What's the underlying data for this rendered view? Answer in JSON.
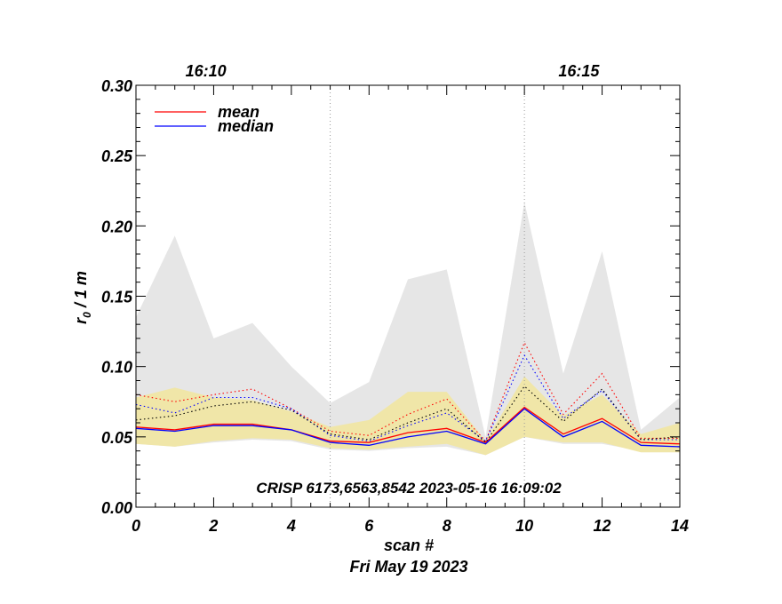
{
  "chart_data": {
    "type": "line",
    "xlabel": "scan #",
    "date_label": "Fri May 19 2023",
    "ylabel_main": "r",
    "ylabel_sub": "0",
    "ylabel_rest": " / 1 m",
    "xlim": [
      0,
      14
    ],
    "ylim": [
      0.0,
      0.3
    ],
    "x_ticks": [
      0,
      2,
      4,
      6,
      8,
      10,
      12,
      14
    ],
    "y_ticks": [
      0.0,
      0.05,
      0.1,
      0.15,
      0.2,
      0.25,
      0.3
    ],
    "y_tick_labels": [
      "0.00",
      "0.05",
      "0.10",
      "0.15",
      "0.20",
      "0.25",
      "0.30"
    ],
    "time_markers": [
      {
        "x": 5,
        "label": ""
      },
      {
        "x": 10,
        "label": ""
      }
    ],
    "top_labels": [
      {
        "x": 1.8,
        "label": "16:10"
      },
      {
        "x": 11.4,
        "label": "16:15"
      }
    ],
    "x": [
      0,
      1,
      2,
      3,
      4,
      5,
      6,
      7,
      8,
      9,
      10,
      11,
      12,
      13,
      14
    ],
    "series": [
      {
        "name": "mean",
        "color": "#ff0000",
        "style": "solid",
        "values": [
          0.057,
          0.055,
          0.059,
          0.059,
          0.055,
          0.047,
          0.046,
          0.053,
          0.056,
          0.046,
          0.071,
          0.052,
          0.063,
          0.046,
          0.045
        ]
      },
      {
        "name": "median",
        "color": "#0000ff",
        "style": "solid",
        "values": [
          0.056,
          0.054,
          0.058,
          0.058,
          0.055,
          0.046,
          0.044,
          0.05,
          0.054,
          0.045,
          0.07,
          0.05,
          0.061,
          0.044,
          0.043
        ]
      },
      {
        "name": "mean-upper",
        "color": "#ff0000",
        "style": "dotted",
        "values": [
          0.08,
          0.075,
          0.08,
          0.084,
          0.07,
          0.054,
          0.051,
          0.066,
          0.077,
          0.047,
          0.117,
          0.066,
          0.095,
          0.049,
          0.049
        ]
      },
      {
        "name": "median-upper",
        "color": "#0000ff",
        "style": "dotted",
        "values": [
          0.073,
          0.067,
          0.078,
          0.078,
          0.07,
          0.051,
          0.047,
          0.058,
          0.067,
          0.047,
          0.108,
          0.063,
          0.083,
          0.048,
          0.048
        ]
      },
      {
        "name": "black-dotted",
        "color": "#000000",
        "style": "dotted",
        "values": [
          0.062,
          0.065,
          0.072,
          0.075,
          0.069,
          0.052,
          0.048,
          0.06,
          0.07,
          0.046,
          0.086,
          0.061,
          0.084,
          0.048,
          0.05
        ]
      }
    ],
    "bands": [
      {
        "name": "range",
        "color": "#e6e6e6",
        "upper": [
          0.135,
          0.193,
          0.12,
          0.131,
          0.1,
          0.074,
          0.089,
          0.162,
          0.169,
          0.05,
          0.217,
          0.095,
          0.182,
          0.055,
          0.078
        ],
        "lower": [
          0.045,
          0.043,
          0.046,
          0.048,
          0.047,
          0.041,
          0.04,
          0.042,
          0.043,
          0.037,
          0.05,
          0.045,
          0.045,
          0.04,
          0.04
        ]
      },
      {
        "name": "spread",
        "color": "#f0e6a8",
        "upper": [
          0.078,
          0.085,
          0.078,
          0.076,
          0.068,
          0.057,
          0.062,
          0.082,
          0.082,
          0.047,
          0.093,
          0.065,
          0.08,
          0.052,
          0.06
        ],
        "lower": [
          0.045,
          0.043,
          0.047,
          0.049,
          0.048,
          0.042,
          0.041,
          0.043,
          0.045,
          0.037,
          0.05,
          0.046,
          0.046,
          0.039,
          0.039
        ]
      }
    ],
    "legend": [
      {
        "label": "mean",
        "color": "#ff0000"
      },
      {
        "label": "median",
        "color": "#0000ff"
      }
    ],
    "annotation": "CRISP 6173,6563,8542 2023-05-16 16:09:02"
  }
}
